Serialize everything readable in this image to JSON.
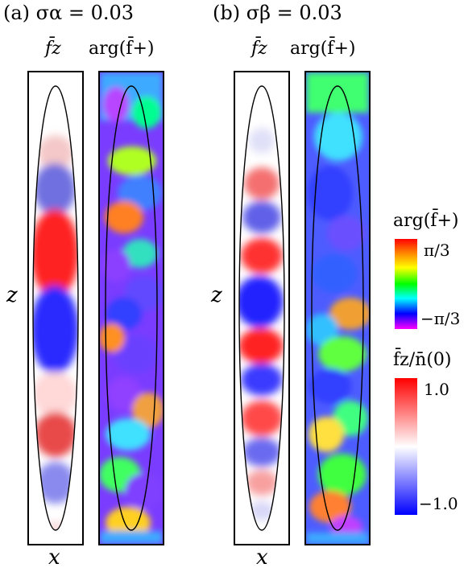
{
  "figure": {
    "panel_a": {
      "title": "(a) σα = 0.03",
      "col1": "f̄z",
      "col2": "arg(f̄+)"
    },
    "panel_b": {
      "title": "(b) σβ = 0.03",
      "col1": "f̄z",
      "col2": "arg(f̄+)"
    },
    "axis_x": "x",
    "axis_z": "z",
    "colorbar_phase": {
      "title": "arg(f̄+)",
      "max_label": "π/3",
      "min_label": "−π/3",
      "colors": [
        "#ff0000",
        "#ff8800",
        "#ffff00",
        "#00ff00",
        "#00ffff",
        "#0000ff",
        "#ff00ff"
      ]
    },
    "colorbar_fz": {
      "title": "f̄z/n̄(0)",
      "max_label": "1.0",
      "min_label": "−1.0",
      "colors": [
        "#ff0000",
        "#ffffff",
        "#0000ff"
      ]
    }
  }
}
